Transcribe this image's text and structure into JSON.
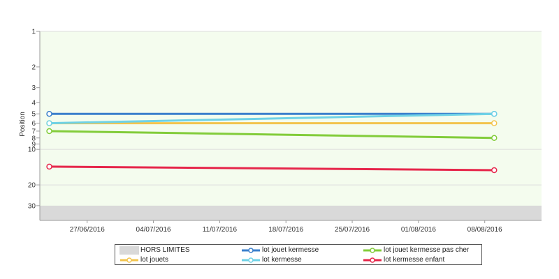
{
  "chart_data": {
    "type": "line",
    "ylabel": "Position",
    "y_scale": "log",
    "y_reversed": true,
    "ylim": [
      1,
      40
    ],
    "y_ticks": [
      1,
      2,
      3,
      4,
      5,
      6,
      7,
      8,
      9,
      10,
      20,
      30
    ],
    "y_tick_labels": [
      "1",
      "2",
      "3",
      "4",
      "5",
      "6",
      "7",
      "8",
      "9",
      "10",
      "20",
      "30"
    ],
    "x_range": [
      "2016-06-22",
      "2016-08-14"
    ],
    "x_ticks": [
      "2016-06-27",
      "2016-07-04",
      "2016-07-11",
      "2016-07-18",
      "2016-07-25",
      "2016-08-01",
      "2016-08-08"
    ],
    "x_tick_labels": [
      "27/06/2016",
      "04/07/2016",
      "11/07/2016",
      "18/07/2016",
      "25/07/2016",
      "01/08/2016",
      "08/08/2016"
    ],
    "out_of_range_band": {
      "label": "HORS LIMITES",
      "from": 30,
      "to": 40,
      "color": "#d9d9d9"
    },
    "plot_background": "#f4fcee",
    "grid": true,
    "legend_position": "bottom",
    "series": [
      {
        "name": "lot jouet kermesse",
        "color": "#3a7fcc",
        "points": [
          [
            "2016-06-23",
            5
          ],
          [
            "2016-08-09",
            5
          ]
        ]
      },
      {
        "name": "lot jouet kermesse pas cher",
        "color": "#82cc3a",
        "points": [
          [
            "2016-06-23",
            7
          ],
          [
            "2016-08-09",
            8
          ]
        ]
      },
      {
        "name": "lot jouets",
        "color": "#f2c44e",
        "points": [
          [
            "2016-06-23",
            6
          ],
          [
            "2016-08-09",
            6
          ]
        ]
      },
      {
        "name": "lot kermesse",
        "color": "#6fd2e6",
        "points": [
          [
            "2016-06-23",
            6
          ],
          [
            "2016-08-09",
            5
          ]
        ]
      },
      {
        "name": "lot kermesse enfant",
        "color": "#e6264a",
        "points": [
          [
            "2016-06-23",
            14
          ],
          [
            "2016-08-09",
            15
          ]
        ]
      }
    ]
  }
}
